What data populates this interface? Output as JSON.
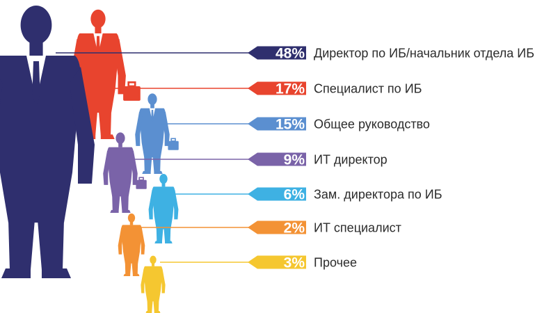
{
  "chart_data": {
    "type": "bar",
    "categories": [
      "Директор по ИБ/начальник отдела ИБ",
      "Специалист по ИБ",
      "Общее руководство",
      "ИТ директор",
      "Зам. директора по ИБ",
      "ИТ специалист",
      "Прочее"
    ],
    "values": [
      48,
      17,
      15,
      9,
      6,
      2,
      3
    ],
    "value_labels": [
      "48%",
      "17%",
      "15%",
      "9%",
      "6%",
      "2%",
      "3%"
    ],
    "unit": "%",
    "colors": [
      "#2f2f6e",
      "#e8442e",
      "#5b8fd0",
      "#7a63a8",
      "#3eb1e3",
      "#f39235",
      "#f5c730"
    ],
    "icons": [
      "businessman-silhouette-icon",
      "walking-businessman-icon",
      "businessman-with-briefcase-icon",
      "businessman-with-briefcase-icon",
      "standing-businessman-icon",
      "businessman-arms-crossed-icon",
      "standing-businessman-icon"
    ],
    "grid": false,
    "legend": "none"
  }
}
